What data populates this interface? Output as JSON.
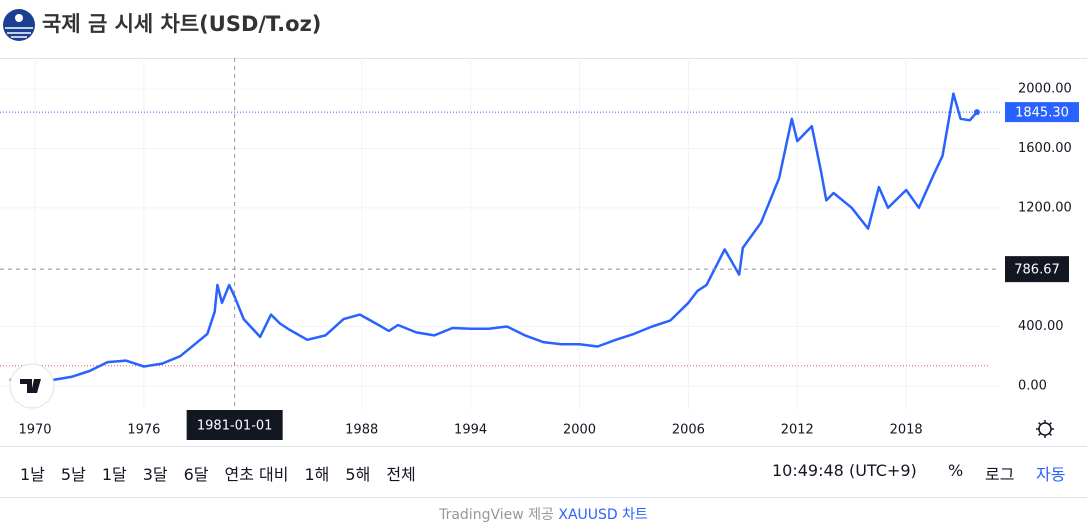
{
  "header": {
    "title": "국제 금 시세 차트(USD/T.oz)"
  },
  "chart_data": {
    "type": "line",
    "x": [
      1968.6,
      1970,
      1971,
      1972,
      1973,
      1974,
      1975,
      1976,
      1977,
      1978,
      1979,
      1979.5,
      1979.9,
      1980.05,
      1980.3,
      1980.7,
      1981,
      1981.5,
      1982.4,
      1983,
      1983.5,
      1984,
      1985,
      1986,
      1987,
      1987.9,
      1988.5,
      1989.5,
      1990,
      1991,
      1992,
      1993,
      1994,
      1995,
      1996,
      1997,
      1998,
      1999,
      2000,
      2001,
      2002,
      2003,
      2004,
      2005,
      2006,
      2006.5,
      2007,
      2008,
      2008.8,
      2009,
      2010,
      2010.5,
      2011,
      2011.7,
      2012,
      2012.8,
      2013.3,
      2013.6,
      2014,
      2015,
      2015.9,
      2016.5,
      2017,
      2018,
      2018.7,
      2019.5,
      2020,
      2020.6,
      2021,
      2021.5,
      2021.9
    ],
    "series": [
      {
        "name": "XAUUSD",
        "color": "#2962ff",
        "values": [
          40,
          36,
          40,
          60,
          100,
          160,
          170,
          130,
          150,
          200,
          300,
          350,
          500,
          680,
          560,
          680,
          600,
          450,
          330,
          480,
          420,
          380,
          310,
          340,
          450,
          480,
          440,
          370,
          410,
          360,
          340,
          390,
          385,
          385,
          400,
          340,
          295,
          280,
          280,
          265,
          310,
          350,
          400,
          440,
          560,
          640,
          680,
          920,
          750,
          930,
          1100,
          1250,
          1400,
          1800,
          1650,
          1750,
          1450,
          1250,
          1300,
          1200,
          1060,
          1340,
          1200,
          1320,
          1200,
          1420,
          1550,
          1970,
          1800,
          1790,
          1845.3
        ]
      }
    ],
    "xlim": [
      1968.07,
      2023.17
    ],
    "ylim": [
      -163,
      2210
    ],
    "xticks": [
      1970,
      1976,
      1988,
      1994,
      2000,
      2006,
      2012,
      2018
    ],
    "yticks": [
      {
        "value": 0,
        "label": "0.00"
      },
      {
        "value": 400,
        "label": "400.00"
      },
      {
        "value": 1200,
        "label": "1200.00"
      },
      {
        "value": 1600,
        "label": "1600.00"
      },
      {
        "value": 2000,
        "label": "2000.00"
      }
    ],
    "last_price": {
      "value": 1845.3,
      "label": "1845.30"
    },
    "reference_line": 135,
    "crosshair": {
      "x": 1981,
      "x_label": "1981-01-01",
      "y": 786.67
    },
    "grid": true
  },
  "toolbar": {
    "ranges": [
      "1날",
      "5날",
      "1달",
      "3달",
      "6달",
      "연초 대비",
      "1해",
      "5해",
      "전체"
    ],
    "time": "10:49:48 (UTC+9)",
    "percent": "%",
    "log": "로그",
    "auto": "자동"
  },
  "footer": {
    "provider": "TradingView 제공",
    "link": "XAUUSD 차트"
  }
}
